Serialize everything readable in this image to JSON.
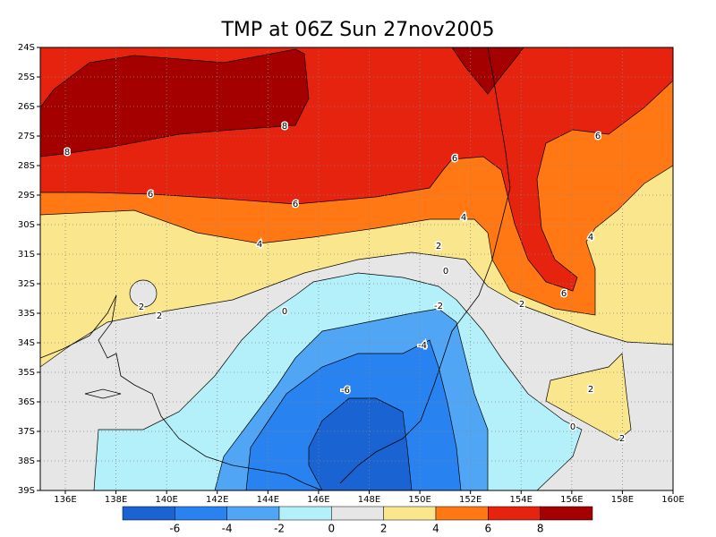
{
  "title": "TMP at 06Z Sun 27nov2005",
  "map": {
    "lat_labels": [
      "24S",
      "25S",
      "26S",
      "27S",
      "28S",
      "29S",
      "30S",
      "31S",
      "32S",
      "33S",
      "34S",
      "35S",
      "36S",
      "37S",
      "38S",
      "39S"
    ],
    "lon_labels": [
      "136E",
      "138E",
      "140E",
      "142E",
      "144E",
      "146E",
      "148E",
      "150E",
      "152E",
      "154E",
      "156E",
      "158E",
      "160E"
    ],
    "contour_labels": [
      8,
      8,
      6,
      6,
      6,
      6,
      6,
      4,
      4,
      4,
      2,
      2,
      2,
      2,
      2,
      2,
      0,
      0,
      0,
      -2,
      -4,
      -6
    ]
  },
  "colorbar": {
    "colors": [
      "#1964d2",
      "#2882f0",
      "#50a5f5",
      "#b4f0fa",
      "#e6e6e6",
      "#fae68c",
      "#ff7814",
      "#e6230f",
      "#a50000"
    ],
    "ticks": [
      -6,
      -4,
      -2,
      0,
      2,
      4,
      6,
      8
    ]
  }
}
